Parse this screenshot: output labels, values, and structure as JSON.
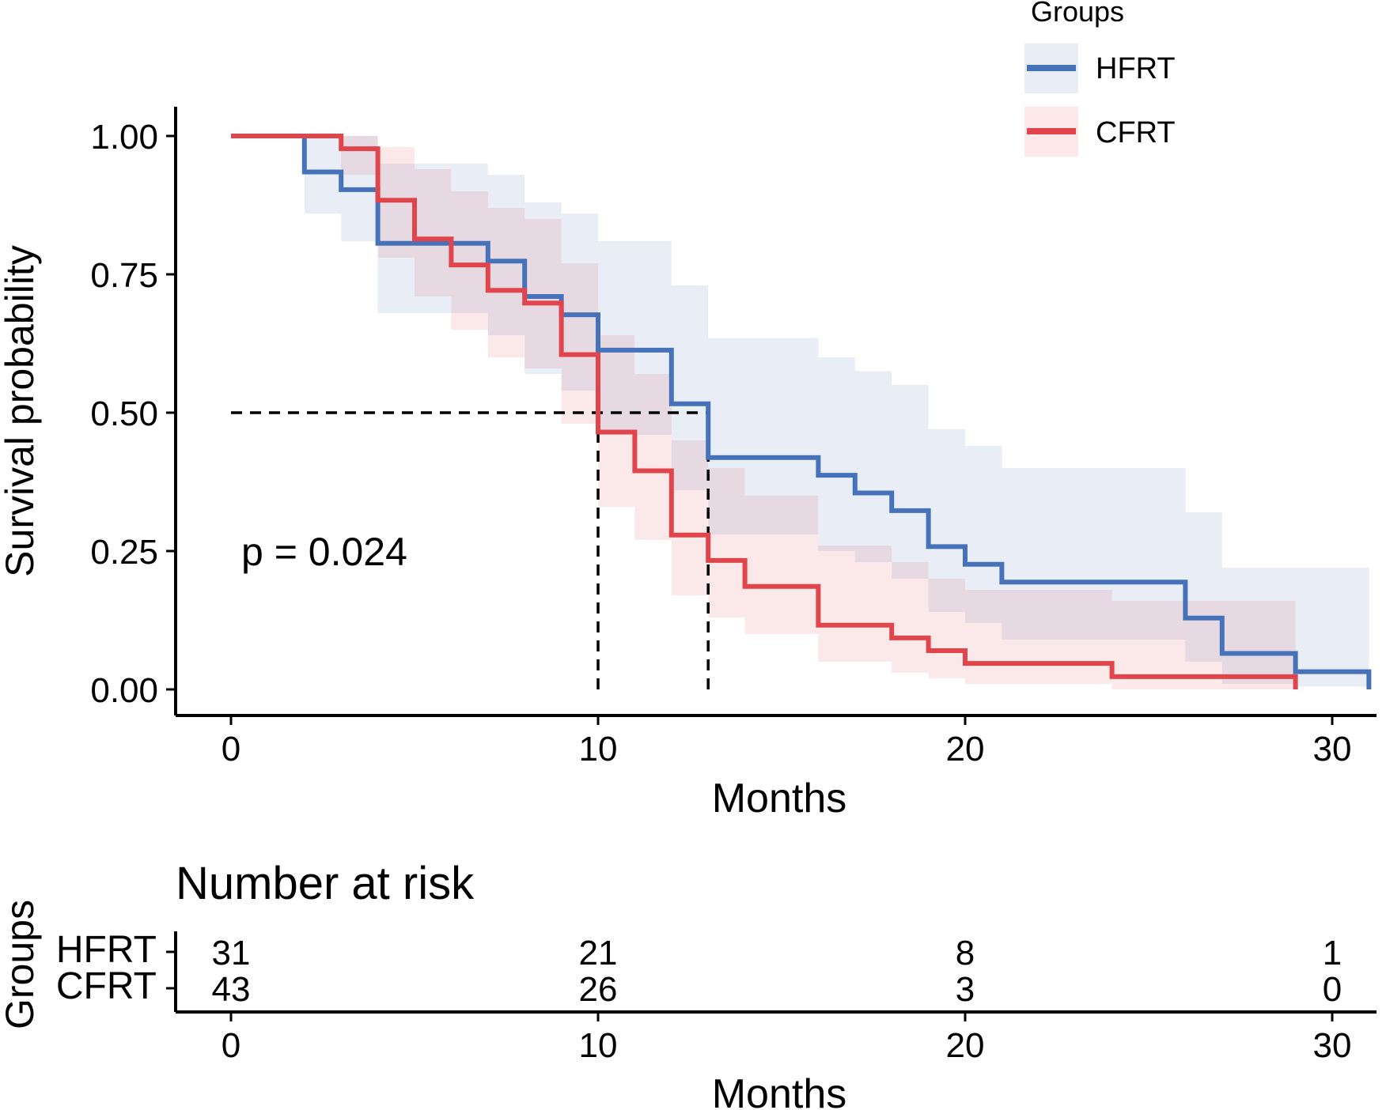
{
  "chart_data": {
    "type": "line",
    "subtype": "kaplan-meier",
    "xlabel": "Months",
    "ylabel": "Survival probability",
    "xlim": [
      0,
      31
    ],
    "ylim": [
      0,
      1
    ],
    "x_ticks": [
      0,
      10,
      20,
      30
    ],
    "y_ticks": [
      "0.00",
      "0.25",
      "0.50",
      "0.75",
      "1.00"
    ],
    "y_tick_values": [
      0,
      0.25,
      0.5,
      0.75,
      1.0
    ],
    "legend_title": "Groups",
    "p_value_label": "p = 0.024",
    "median_survival": {
      "HFRT": 13,
      "CFRT": 10
    },
    "series": [
      {
        "name": "HFRT",
        "color": "#4672B9",
        "fill": "#E9EEF6",
        "steps": [
          [
            0,
            1.0
          ],
          [
            2,
            0.935
          ],
          [
            3,
            0.903
          ],
          [
            4,
            0.806
          ],
          [
            6,
            0.806
          ],
          [
            7,
            0.774
          ],
          [
            8,
            0.71
          ],
          [
            9,
            0.677
          ],
          [
            10,
            0.613
          ],
          [
            12,
            0.516
          ],
          [
            13,
            0.419
          ],
          [
            16,
            0.387
          ],
          [
            17,
            0.355
          ],
          [
            18,
            0.323
          ],
          [
            19,
            0.258
          ],
          [
            20,
            0.226
          ],
          [
            21,
            0.194
          ],
          [
            26,
            0.129
          ],
          [
            27,
            0.065
          ],
          [
            29,
            0.032
          ],
          [
            31,
            0.0
          ]
        ],
        "ci_steps": [
          [
            0,
            1.0,
            1.0
          ],
          [
            2,
            1.0,
            0.86
          ],
          [
            3,
            1.0,
            0.81
          ],
          [
            4,
            0.95,
            0.68
          ],
          [
            6,
            0.95,
            0.68
          ],
          [
            7,
            0.93,
            0.64
          ],
          [
            8,
            0.88,
            0.57
          ],
          [
            9,
            0.86,
            0.54
          ],
          [
            10,
            0.81,
            0.46
          ],
          [
            12,
            0.73,
            0.36
          ],
          [
            13,
            0.635,
            0.28
          ],
          [
            16,
            0.6,
            0.25
          ],
          [
            17,
            0.575,
            0.23
          ],
          [
            18,
            0.55,
            0.2
          ],
          [
            19,
            0.47,
            0.14
          ],
          [
            20,
            0.44,
            0.12
          ],
          [
            21,
            0.4,
            0.09
          ],
          [
            26,
            0.32,
            0.05
          ],
          [
            27,
            0.22,
            0.01
          ],
          [
            29,
            0.22,
            0.005
          ],
          [
            31,
            0.22,
            0.0
          ]
        ]
      },
      {
        "name": "CFRT",
        "color": "#E0454C",
        "fill": "#FCE8E8",
        "steps": [
          [
            0,
            1.0
          ],
          [
            3,
            0.977
          ],
          [
            4,
            0.884
          ],
          [
            5,
            0.814
          ],
          [
            6,
            0.767
          ],
          [
            7,
            0.721
          ],
          [
            8,
            0.698
          ],
          [
            9,
            0.605
          ],
          [
            10,
            0.465
          ],
          [
            11,
            0.395
          ],
          [
            12,
            0.279
          ],
          [
            13,
            0.233
          ],
          [
            14,
            0.186
          ],
          [
            16,
            0.116
          ],
          [
            18,
            0.093
          ],
          [
            19,
            0.07
          ],
          [
            20,
            0.047
          ],
          [
            24,
            0.023
          ],
          [
            29,
            0.0
          ]
        ],
        "ci_steps": [
          [
            0,
            1.0,
            1.0
          ],
          [
            3,
            1.0,
            0.93
          ],
          [
            4,
            0.98,
            0.78
          ],
          [
            5,
            0.94,
            0.71
          ],
          [
            6,
            0.9,
            0.65
          ],
          [
            7,
            0.87,
            0.6
          ],
          [
            8,
            0.85,
            0.58
          ],
          [
            9,
            0.77,
            0.48
          ],
          [
            10,
            0.64,
            0.33
          ],
          [
            11,
            0.57,
            0.27
          ],
          [
            12,
            0.45,
            0.17
          ],
          [
            13,
            0.4,
            0.13
          ],
          [
            14,
            0.35,
            0.1
          ],
          [
            16,
            0.26,
            0.05
          ],
          [
            18,
            0.23,
            0.03
          ],
          [
            19,
            0.2,
            0.02
          ],
          [
            20,
            0.18,
            0.01
          ],
          [
            24,
            0.16,
            0.0
          ],
          [
            29,
            0.16,
            0.0
          ]
        ]
      }
    ],
    "risk_table": {
      "title": "Number at risk",
      "xlabel": "Months",
      "ylabel": "Groups",
      "times": [
        0,
        10,
        20,
        30
      ],
      "rows": [
        {
          "name": "HFRT",
          "color": "#4672B9",
          "counts": [
            "31",
            "21",
            "8",
            "1"
          ]
        },
        {
          "name": "CFRT",
          "color": "#E0454C",
          "counts": [
            "43",
            "26",
            "3",
            "0"
          ]
        }
      ]
    }
  }
}
